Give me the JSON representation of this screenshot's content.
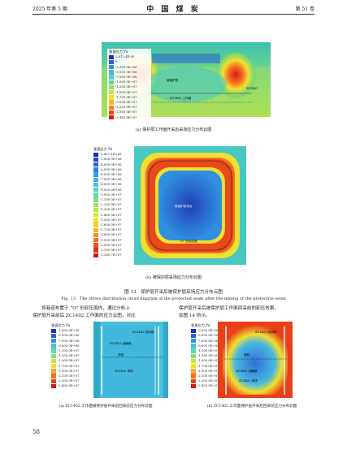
{
  "header": {
    "left": "2025 年第 5 期",
    "center": "中 国 煤 炭",
    "right": "第 51 卷"
  },
  "fig_a": {
    "legend_title": "垂直应力 Pa",
    "legend": [
      "2.972 4E-05",
      "0",
      "-2.500 0E+06",
      "-5.000 0E+06",
      "-7.500 0E+06",
      "-1.000 0E+07",
      "-1.250 0E+07",
      "-1.500 0E+07",
      "-1.750 0E+07",
      "-2.000 0E+07",
      "-2.250 0E+07",
      "-2.500 0E+07",
      "-2.443 9E+07"
    ],
    "legend_colors": [
      "#2030b0",
      "#2a60d0",
      "#3090e0",
      "#40b8e8",
      "#50d0c8",
      "#60d890",
      "#90e060",
      "#c8e840",
      "#f0e030",
      "#f8b828",
      "#f88020",
      "#f04818",
      "#d81818"
    ],
    "label_protected": "被保护层",
    "label_zc": "ZC1402 工作面",
    "label_right": "ZC1401",
    "caption": "(a) 保护层工作面开采后采场应力分布云图"
  },
  "fig_b": {
    "legend_title": "垂直应力 Pa",
    "legend": [
      "-2.457 1E+06",
      "-3.000 0E+06",
      "-4.000 0E+06",
      "-5.000 0E+06",
      "-6.000 0E+06",
      "-7.000 0E+06",
      "-8.000 0E+06",
      "-9.000 0E+06",
      "-1.000 0E+07",
      "-1.100 0E+07",
      "-1.200 0E+07",
      "-1.300 0E+07",
      "-1.400 0E+07",
      "-1.500 0E+07",
      "-1.600 0E+07",
      "-1.700 0E+07",
      "-1.800 0E+07",
      "-1.900 0E+07",
      "-2.000 0E+07",
      "-2.100 0E+07",
      "-2.185 7E+07"
    ],
    "legend_colors": [
      "#2030b0",
      "#2848c8",
      "#2c64d8",
      "#3080e0",
      "#389ce8",
      "#40b4ec",
      "#48c8e0",
      "#50d4c4",
      "#60dca0",
      "#78e07c",
      "#98e460",
      "#b8e848",
      "#d4e83c",
      "#ece034",
      "#f8cc2c",
      "#f8b028",
      "#f89024",
      "#f47020",
      "#ec501c",
      "#e03418",
      "#d01818"
    ],
    "label_center": "被保护层采区",
    "label_bottom": "\"O\" 形卸压圈",
    "caption": "(b) 被保护层采场应力分布云图"
  },
  "figure_caption_cn": "图 13　保护层开采后被保护层采场应力分布云图",
  "figure_caption_en": "Fig. 13　The stress distribution cloud diagram of the protected seam after the mining of the protective seam",
  "body_left": [
    "将巷道布置于 “O” 形卸压圈内，通过分析上",
    "保护层开采前后 ZC1402 工作面的应力云图，对比"
  ],
  "body_right": [
    "保护层开采后被保护层工作面回采前的卸压效果，",
    "如图 14 所示。"
  ],
  "fig_c": {
    "legend_title": "垂直应力 Pa",
    "legend": [
      "-1.000 0E+06",
      "-5.000 0E+06",
      "-7.000 0E+06",
      "-9.000 0E+06",
      "-1.100 0E+07",
      "-1.300 0E+07",
      "-1.500 0E+07",
      "-1.700 0E+07",
      "-1.900 0E+07",
      "-2.100 0E+07",
      "-2.300 0E+07",
      "-2.400 0E+07"
    ],
    "legend_colors": [
      "#2030b0",
      "#2c60d0",
      "#3890e0",
      "#48c0e0",
      "#60d8a8",
      "#88e070",
      "#c0e848",
      "#f0e030",
      "#f8a828",
      "#f87020",
      "#e84018",
      "#d01818"
    ],
    "labels": [
      "ZC1402 回风巷",
      "ZC1402 运输巷",
      "测线",
      "ZC1402 采场"
    ],
    "caption": "(a) ZC1402 工作面被保护层开采前回采前应力分布云图"
  },
  "fig_d": {
    "legend_title": "垂直应力 Pa",
    "legend": [
      "-3.000 0E+06",
      "-5.000 0E+06",
      "-7.000 0E+06",
      "-9.000 0E+06",
      "-1.100 0E+07",
      "-1.300 0E+07",
      "-1.500 0E+07",
      "-1.700 0E+07",
      "-1.900 0E+07",
      "-2.100 0E+07",
      "-2.300 0E+07",
      "-2.400 0E+07"
    ],
    "legend_colors": [
      "#2030b0",
      "#2c60d0",
      "#3890e0",
      "#48c0e0",
      "#60d8a8",
      "#88e070",
      "#c0e848",
      "#f0e030",
      "#f8a828",
      "#f87020",
      "#e84018",
      "#d01818"
    ],
    "labels": [
      "ZC1402 回风巷",
      "测线",
      "ZC1402 运输巷",
      "ZC1402 采场"
    ],
    "caption": "(b) ZC1402 工作面保护层开采后回采前应力分布云图"
  },
  "page_number": "58"
}
